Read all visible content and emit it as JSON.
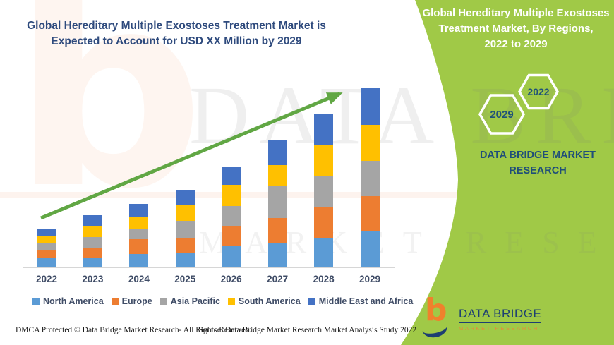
{
  "main_title": {
    "line1": "Global Hereditary Multiple Exostoses Treatment Market is",
    "line2": "Expected to Account for USD XX Million by 2029"
  },
  "right_panel": {
    "background_color": "#a0c947",
    "title_line1": "Global Hereditary Multiple Exostoses",
    "title_line2": "Treatment Market, By Regions,",
    "title_line3": "2022 to 2029",
    "hexagon_badges": [
      {
        "label": "2029"
      },
      {
        "label": "2022"
      }
    ],
    "brand_line1": "DATA BRIDGE MARKET",
    "brand_line2": "RESEARCH",
    "logo": {
      "name_text": "DATA BRIDGE",
      "subtitle_text": "MARKET RESEARCH",
      "letter": "b"
    }
  },
  "watermark": {
    "letter": "b",
    "line1": "DATA BRIDGE",
    "line2": "MARKET RESEARCH"
  },
  "footer": {
    "dmca": "DMCA Protected © Data Bridge Market Research- All Rights Reserved.",
    "source": "Source: Data Bridge Market Research Market Analysis Study 2022"
  },
  "chart_data": {
    "type": "bar",
    "stacked": true,
    "title": "Global Hereditary Multiple Exostoses Treatment Market is Expected to Account for USD XX Million by 2029",
    "xlabel": "",
    "ylabel": "",
    "value_note": "Actual values undisclosed (USD XX Million); series values are relative units estimated from bar pixel heights",
    "grid": false,
    "legend_position": "bottom",
    "trend_arrow": true,
    "arrow_color": "#61a744",
    "categories": [
      "2022",
      "2023",
      "2024",
      "2025",
      "2026",
      "2027",
      "2028",
      "2029"
    ],
    "series": [
      {
        "name": "North America",
        "color": "#5B9BD5",
        "values": [
          14,
          13,
          19,
          21,
          30,
          35,
          42,
          51
        ]
      },
      {
        "name": "Europe",
        "color": "#ED7D31",
        "values": [
          11,
          15,
          21,
          21,
          29,
          35,
          44,
          50
        ]
      },
      {
        "name": "Asia Pacific",
        "color": "#A5A5A5",
        "values": [
          9,
          15,
          14,
          24,
          28,
          45,
          43,
          50
        ]
      },
      {
        "name": "South America",
        "color": "#FFC000",
        "values": [
          10,
          15,
          18,
          23,
          30,
          30,
          44,
          51
        ]
      },
      {
        "name": "Middle East and Africa",
        "color": "#4472C4",
        "values": [
          10,
          16,
          18,
          20,
          26,
          36,
          45,
          52
        ]
      }
    ],
    "totals": [
      54,
      74,
      90,
      109,
      143,
      181,
      218,
      254
    ]
  }
}
